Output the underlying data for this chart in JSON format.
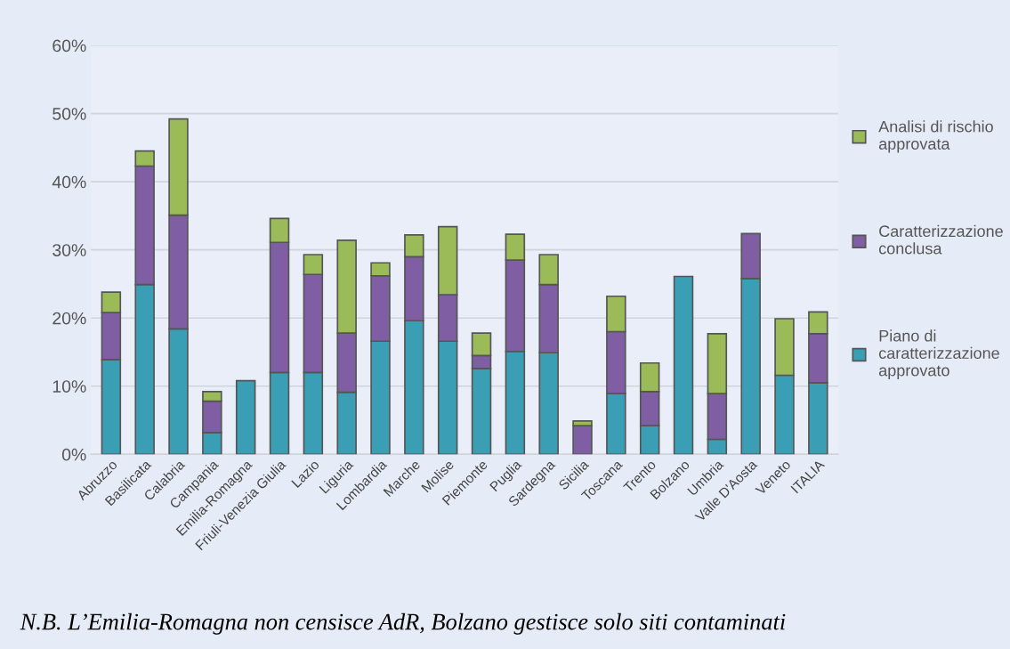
{
  "chart_data": {
    "type": "bar",
    "stacked": true,
    "categories": [
      "Abruzzo",
      "Basilicata",
      "Calabria",
      "Campania",
      "Emilia-Romagna",
      "Friuli-Venezia Giulia",
      "Lazio",
      "Liguria",
      "Lombardia",
      "Marche",
      "Molise",
      "Piemonte",
      "Puglia",
      "Sardegna",
      "Sicilia",
      "Toscana",
      "Trento",
      "Bolzano",
      "Umbria",
      "Valle D'Aosta",
      "Veneto",
      "ITALIA"
    ],
    "series": [
      {
        "name": "Piano di\ncaratterizzazione\napprovato",
        "color": "#3a9fb5",
        "values": [
          13.9,
          24.9,
          18.4,
          3.2,
          10.8,
          12.0,
          12.0,
          9.1,
          16.6,
          19.6,
          16.6,
          12.6,
          15.1,
          14.9,
          null,
          8.9,
          4.2,
          26.1,
          2.2,
          25.8,
          11.6,
          10.5
        ]
      },
      {
        "name": "Caratterizzazione\nconclusa",
        "color": "#7f5ea3",
        "values": [
          6.9,
          17.4,
          16.7,
          4.6,
          null,
          19.1,
          14.4,
          8.7,
          9.6,
          9.4,
          6.8,
          1.9,
          13.4,
          10.0,
          4.2,
          9.1,
          5.0,
          null,
          6.7,
          6.6,
          null,
          7.2
        ]
      },
      {
        "name": "Analisi di rischio\napprovata",
        "color": "#9bbb59",
        "values": [
          3.0,
          2.2,
          14.1,
          1.4,
          null,
          3.5,
          2.9,
          13.6,
          1.9,
          3.2,
          10.0,
          3.3,
          3.8,
          4.4,
          0.7,
          5.2,
          4.2,
          null,
          8.8,
          null,
          8.3,
          3.2
        ]
      }
    ],
    "ylim": [
      0,
      60
    ],
    "yticks": [
      {
        "value": 0,
        "label": "0%"
      },
      {
        "value": 10,
        "label": "10%"
      },
      {
        "value": 20,
        "label": "20%"
      },
      {
        "value": 30,
        "label": "30%"
      },
      {
        "value": 40,
        "label": "40%"
      },
      {
        "value": 50,
        "label": "50%"
      },
      {
        "value": 60,
        "label": "60%"
      }
    ],
    "grid": "y",
    "legend": "right",
    "annotations": [
      "N.B. L’Emilia-Romagna non censisce AdR, Bolzano gestisce solo siti contaminati"
    ]
  }
}
